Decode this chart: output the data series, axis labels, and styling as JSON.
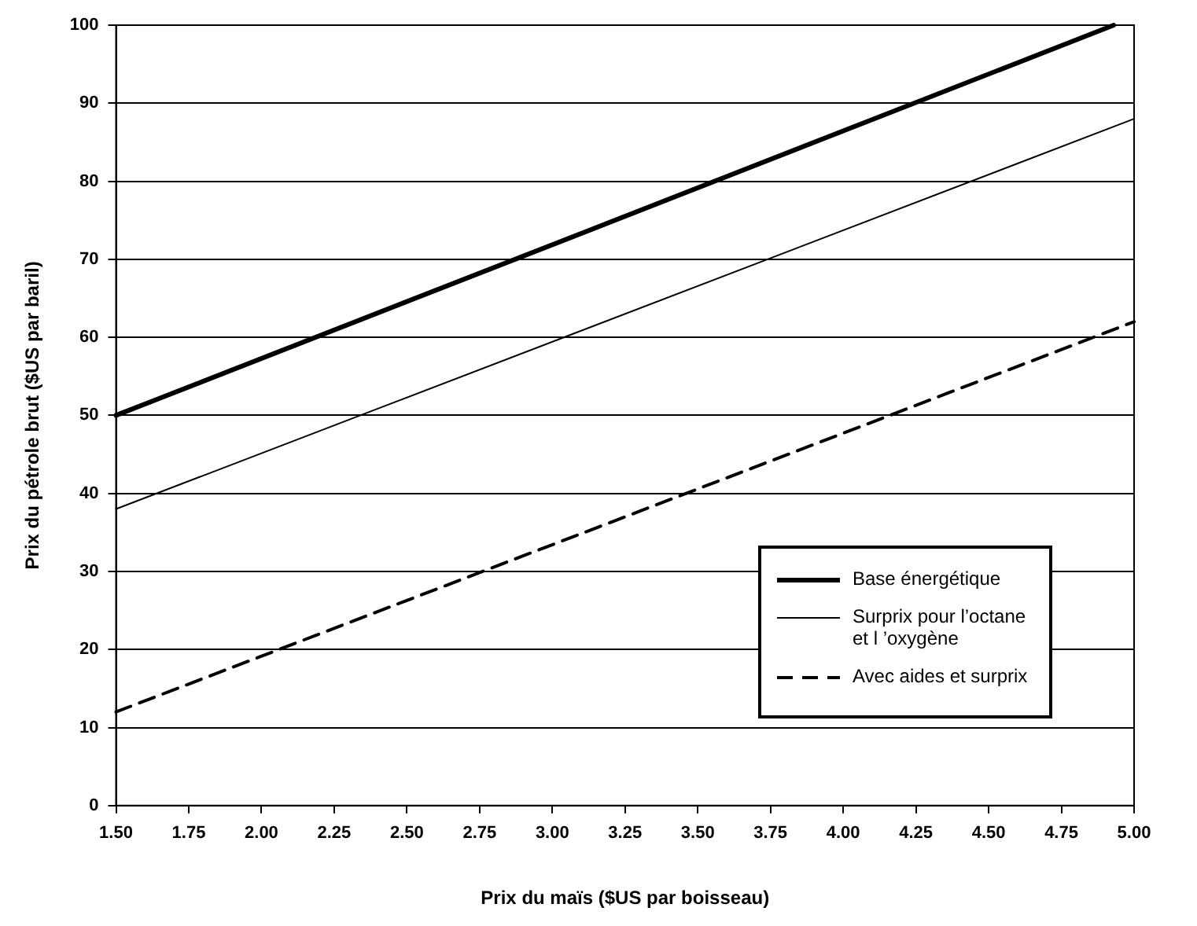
{
  "chart_data": {
    "type": "line",
    "xlabel": "Prix du maïs ($US par boisseau)",
    "ylabel": "Prix du pétrole brut ($US par baril)",
    "xlim": [
      1.5,
      5
    ],
    "xticks": [
      {
        "value": 1.5,
        "label": "1.50"
      },
      {
        "value": 1.75,
        "label": "1.75"
      },
      {
        "value": 2,
        "label": "2.00"
      },
      {
        "value": 2.25,
        "label": "2.25"
      },
      {
        "value": 2.5,
        "label": "2.50"
      },
      {
        "value": 2.75,
        "label": "2.75"
      },
      {
        "value": 3,
        "label": "3.00"
      },
      {
        "value": 3.25,
        "label": "3.25"
      },
      {
        "value": 3.5,
        "label": "3.50"
      },
      {
        "value": 3.75,
        "label": "3.75"
      },
      {
        "value": 4,
        "label": "4.00"
      },
      {
        "value": 4.25,
        "label": "4.25"
      },
      {
        "value": 4.5,
        "label": "4.50"
      },
      {
        "value": 4.75,
        "label": "4.75"
      },
      {
        "value": 5,
        "label": "5.00"
      }
    ],
    "ylim": [
      0,
      100
    ],
    "yticks": [
      0,
      10,
      20,
      30,
      40,
      50,
      60,
      70,
      80,
      90,
      100
    ],
    "grid": "y",
    "legend": "bottom right",
    "marker": "none",
    "series": [
      {
        "name": "Base énergétique",
        "color": "#000000",
        "x": [
          1.5,
          4.93
        ],
        "values": [
          50,
          100
        ],
        "line_style": "solid"
      },
      {
        "name": "Surprix pour l’octane et l ’oxygène",
        "color": "#000000",
        "x": [
          1.5,
          5
        ],
        "values": [
          38,
          88
        ],
        "line_style": "solid"
      },
      {
        "name": "Avec aides et surprix",
        "color": "#000000",
        "x": [
          1.5,
          5
        ],
        "values": [
          12,
          62
        ],
        "line_style": "dashed"
      }
    ]
  }
}
